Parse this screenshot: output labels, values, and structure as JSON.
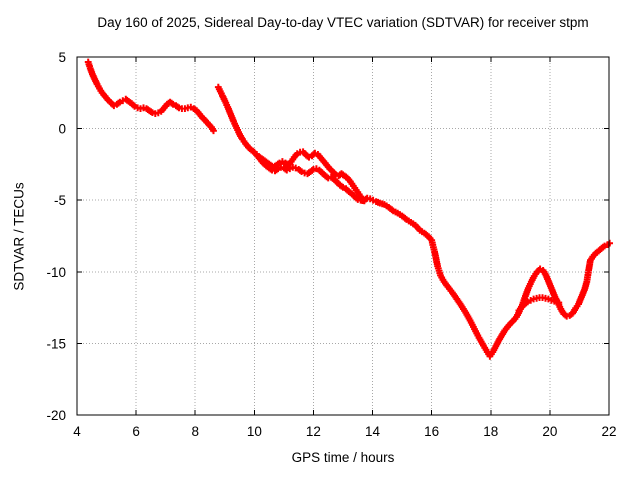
{
  "title": "Day 160 of 2025, Sidereal Day-to-day VTEC variation (SDTVAR) for receiver stpm",
  "axes": {
    "x": {
      "label": "GPS time / hours",
      "min": 4,
      "max": 22,
      "ticks": [
        4,
        6,
        8,
        10,
        12,
        14,
        16,
        18,
        20,
        22
      ]
    },
    "y": {
      "label": "SDTVAR / TECUs",
      "min": -20,
      "max": 5,
      "ticks": [
        5,
        0,
        -5,
        -10,
        -15,
        -20
      ]
    }
  },
  "style": {
    "data_color": "#ff0000",
    "grid_color": "#a8a8a8",
    "frame_color": "#000000",
    "background": "#ffffff"
  },
  "chart_data": {
    "type": "scatter",
    "marker": "plus",
    "title": "Day 160 of 2025, Sidereal Day-to-day VTEC variation (SDTVAR) for receiver stpm",
    "xlabel": "GPS time / hours",
    "ylabel": "SDTVAR / TECUs",
    "xlim": [
      4,
      22
    ],
    "ylim": [
      -20,
      5
    ],
    "grid": true,
    "legend": "none",
    "series": [
      {
        "name": "series1",
        "segments": [
          [
            [
              4.38,
              4.65
            ],
            [
              4.45,
              4.2
            ],
            [
              4.52,
              3.8
            ],
            [
              4.6,
              3.45
            ],
            [
              4.68,
              3.1
            ],
            [
              4.76,
              2.8
            ],
            [
              4.85,
              2.5
            ],
            [
              4.95,
              2.25
            ],
            [
              5.05,
              2.0
            ],
            [
              5.15,
              1.8
            ],
            [
              5.25,
              1.6
            ],
            [
              5.35,
              1.7
            ],
            [
              5.45,
              1.85
            ],
            [
              5.55,
              1.95
            ],
            [
              5.65,
              2.05
            ],
            [
              5.75,
              1.9
            ],
            [
              5.85,
              1.75
            ],
            [
              5.95,
              1.55
            ],
            [
              6.05,
              1.45
            ],
            [
              6.15,
              1.4
            ],
            [
              6.25,
              1.45
            ],
            [
              6.35,
              1.4
            ],
            [
              6.45,
              1.25
            ],
            [
              6.55,
              1.12
            ],
            [
              6.65,
              1.05
            ],
            [
              6.75,
              1.1
            ],
            [
              6.85,
              1.2
            ],
            [
              6.95,
              1.45
            ],
            [
              7.05,
              1.7
            ],
            [
              7.15,
              1.85
            ],
            [
              7.25,
              1.7
            ],
            [
              7.35,
              1.6
            ],
            [
              7.45,
              1.45
            ],
            [
              7.55,
              1.4
            ],
            [
              7.65,
              1.4
            ],
            [
              7.75,
              1.45
            ],
            [
              7.85,
              1.5
            ],
            [
              7.95,
              1.4
            ],
            [
              8.05,
              1.25
            ],
            [
              8.15,
              1.0
            ],
            [
              8.25,
              0.75
            ],
            [
              8.35,
              0.55
            ],
            [
              8.45,
              0.3
            ],
            [
              8.55,
              0.1
            ],
            [
              8.62,
              -0.15
            ]
          ],
          [
            [
              8.78,
              2.9
            ],
            [
              8.85,
              2.6
            ],
            [
              8.92,
              2.3
            ],
            [
              9.0,
              1.95
            ],
            [
              9.1,
              1.5
            ],
            [
              9.2,
              1.0
            ],
            [
              9.3,
              0.5
            ],
            [
              9.4,
              0.05
            ],
            [
              9.5,
              -0.4
            ],
            [
              9.6,
              -0.75
            ],
            [
              9.7,
              -1.05
            ],
            [
              9.8,
              -1.3
            ],
            [
              9.9,
              -1.5
            ],
            [
              10.0,
              -1.65
            ],
            [
              10.08,
              -1.8
            ],
            [
              10.15,
              -1.95
            ],
            [
              10.25,
              -2.1
            ],
            [
              10.35,
              -2.25
            ],
            [
              10.45,
              -2.4
            ],
            [
              10.55,
              -2.55
            ],
            [
              10.65,
              -2.7
            ],
            [
              10.75,
              -2.55
            ],
            [
              10.85,
              -2.4
            ],
            [
              10.95,
              -2.3
            ],
            [
              11.05,
              -2.4
            ],
            [
              11.15,
              -2.55
            ],
            [
              11.25,
              -2.3
            ],
            [
              11.35,
              -2.0
            ],
            [
              11.45,
              -1.75
            ],
            [
              11.55,
              -1.65
            ],
            [
              11.65,
              -1.62
            ],
            [
              11.75,
              -1.85
            ],
            [
              11.85,
              -2.0
            ],
            [
              11.95,
              -1.9
            ],
            [
              12.05,
              -1.72
            ],
            [
              12.15,
              -1.8
            ],
            [
              12.25,
              -2.05
            ],
            [
              12.35,
              -2.3
            ],
            [
              12.45,
              -2.55
            ],
            [
              12.55,
              -2.8
            ],
            [
              12.65,
              -3.0
            ],
            [
              12.75,
              -3.2
            ],
            [
              12.85,
              -3.3
            ],
            [
              12.95,
              -3.15
            ],
            [
              13.05,
              -3.3
            ],
            [
              13.15,
              -3.45
            ],
            [
              13.25,
              -3.7
            ],
            [
              13.35,
              -4.0
            ],
            [
              13.45,
              -4.3
            ],
            [
              13.55,
              -4.6
            ],
            [
              13.65,
              -4.9
            ],
            [
              13.72,
              -5.0
            ],
            [
              13.82,
              -4.85
            ],
            [
              13.92,
              -4.9
            ],
            [
              14.02,
              -5.0
            ],
            [
              14.12,
              -5.1
            ],
            [
              14.25,
              -5.2
            ],
            [
              14.4,
              -5.3
            ],
            [
              14.55,
              -5.5
            ],
            [
              14.7,
              -5.75
            ],
            [
              14.85,
              -5.9
            ],
            [
              15.0,
              -6.1
            ],
            [
              15.15,
              -6.35
            ],
            [
              15.3,
              -6.55
            ],
            [
              15.45,
              -6.75
            ],
            [
              15.6,
              -7.1
            ],
            [
              15.75,
              -7.3
            ],
            [
              15.9,
              -7.55
            ],
            [
              16.0,
              -7.8
            ],
            [
              16.1,
              -8.6
            ],
            [
              16.2,
              -9.6
            ],
            [
              16.3,
              -10.25
            ],
            [
              16.42,
              -10.7
            ],
            [
              16.55,
              -11.05
            ],
            [
              16.7,
              -11.45
            ],
            [
              16.85,
              -11.9
            ],
            [
              17.0,
              -12.35
            ],
            [
              17.15,
              -12.85
            ],
            [
              17.3,
              -13.4
            ],
            [
              17.45,
              -14.0
            ],
            [
              17.6,
              -14.6
            ],
            [
              17.75,
              -15.15
            ],
            [
              17.88,
              -15.6
            ],
            [
              17.97,
              -15.9
            ],
            [
              18.07,
              -15.6
            ],
            [
              18.17,
              -15.2
            ],
            [
              18.27,
              -14.8
            ],
            [
              18.37,
              -14.45
            ],
            [
              18.47,
              -14.1
            ],
            [
              18.57,
              -13.85
            ],
            [
              18.67,
              -13.6
            ],
            [
              18.77,
              -13.4
            ],
            [
              18.87,
              -13.15
            ],
            [
              18.97,
              -12.75
            ],
            [
              19.07,
              -12.3
            ],
            [
              19.17,
              -11.7
            ],
            [
              19.27,
              -11.15
            ],
            [
              19.37,
              -10.7
            ],
            [
              19.47,
              -10.3
            ],
            [
              19.57,
              -10.0
            ],
            [
              19.67,
              -9.8
            ],
            [
              19.77,
              -9.9
            ],
            [
              19.87,
              -10.25
            ],
            [
              19.97,
              -10.75
            ],
            [
              20.07,
              -11.25
            ],
            [
              20.17,
              -11.75
            ],
            [
              20.27,
              -12.15
            ],
            [
              20.37,
              -12.6
            ],
            [
              20.47,
              -12.95
            ],
            [
              20.57,
              -13.1
            ],
            [
              20.67,
              -13.05
            ],
            [
              20.77,
              -12.9
            ],
            [
              20.87,
              -12.55
            ],
            [
              20.97,
              -12.25
            ],
            [
              21.07,
              -11.75
            ],
            [
              21.17,
              -11.25
            ],
            [
              21.25,
              -10.7
            ],
            [
              21.31,
              -9.9
            ],
            [
              21.37,
              -9.2
            ],
            [
              21.45,
              -8.95
            ],
            [
              21.55,
              -8.7
            ],
            [
              21.65,
              -8.55
            ],
            [
              21.75,
              -8.35
            ],
            [
              21.85,
              -8.2
            ],
            [
              21.95,
              -8.1
            ],
            [
              22.02,
              -8.0
            ]
          ]
        ]
      },
      {
        "name": "series2",
        "segments": [
          [
            [
              10.08,
              -1.85
            ],
            [
              10.2,
              -2.15
            ],
            [
              10.3,
              -2.4
            ],
            [
              10.4,
              -2.6
            ],
            [
              10.5,
              -2.75
            ],
            [
              10.6,
              -2.9
            ],
            [
              10.7,
              -2.95
            ],
            [
              10.8,
              -2.8
            ],
            [
              10.9,
              -2.7
            ],
            [
              11.0,
              -2.75
            ],
            [
              11.1,
              -2.9
            ],
            [
              11.2,
              -2.8
            ],
            [
              11.3,
              -2.7
            ],
            [
              11.4,
              -2.75
            ],
            [
              11.5,
              -2.85
            ],
            [
              11.6,
              -3.0
            ],
            [
              11.7,
              -3.1
            ],
            [
              11.8,
              -3.15
            ],
            [
              11.9,
              -3.0
            ],
            [
              12.0,
              -2.85
            ],
            [
              12.1,
              -2.8
            ],
            [
              12.2,
              -2.9
            ],
            [
              12.3,
              -3.1
            ],
            [
              12.4,
              -3.3
            ],
            [
              12.5,
              -3.45
            ],
            [
              12.6,
              -3.4
            ],
            [
              12.7,
              -3.55
            ],
            [
              12.8,
              -3.75
            ],
            [
              12.9,
              -3.95
            ],
            [
              13.0,
              -4.1
            ],
            [
              13.1,
              -4.2
            ],
            [
              13.2,
              -4.4
            ],
            [
              13.3,
              -4.55
            ],
            [
              13.4,
              -4.75
            ],
            [
              13.5,
              -4.95
            ],
            [
              13.6,
              -5.0
            ],
            [
              13.72,
              -5.05
            ]
          ],
          [
            [
              18.95,
              -12.7
            ],
            [
              19.05,
              -12.45
            ],
            [
              19.15,
              -12.25
            ],
            [
              19.25,
              -12.1
            ],
            [
              19.35,
              -12.0
            ],
            [
              19.45,
              -11.9
            ],
            [
              19.55,
              -11.85
            ],
            [
              19.65,
              -11.8
            ],
            [
              19.75,
              -11.8
            ],
            [
              19.85,
              -11.85
            ],
            [
              19.95,
              -11.9
            ],
            [
              20.05,
              -12.0
            ],
            [
              20.15,
              -12.05
            ],
            [
              20.3,
              -12.15
            ]
          ]
        ]
      }
    ]
  }
}
